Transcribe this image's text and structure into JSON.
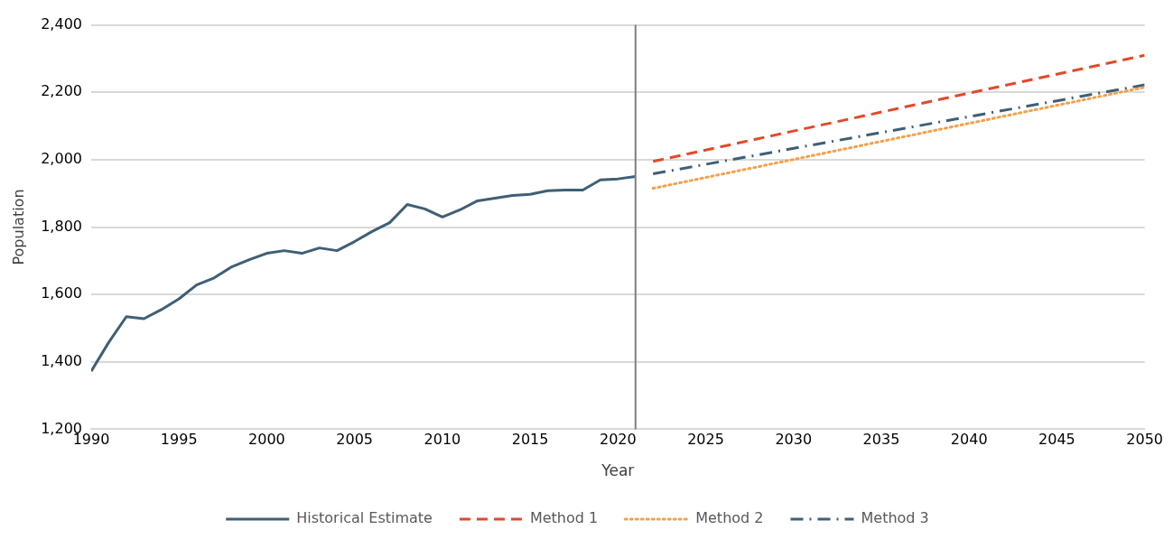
{
  "chart_data": {
    "type": "line",
    "xlabel": "Year",
    "ylabel": "Population",
    "xlim": [
      1990,
      2050
    ],
    "xticks": [
      1990,
      1995,
      2000,
      2005,
      2010,
      2015,
      2020,
      2025,
      2030,
      2035,
      2040,
      2045,
      2050
    ],
    "ylim": [
      1200,
      2400
    ],
    "yticks": [
      {
        "value": 1200,
        "label": "1,200"
      },
      {
        "value": 1400,
        "label": "1,400"
      },
      {
        "value": 1600,
        "label": "1,600"
      },
      {
        "value": 1800,
        "label": "1,800"
      },
      {
        "value": 2000,
        "label": "2,000"
      },
      {
        "value": 2200,
        "label": "2,200"
      },
      {
        "value": 2400,
        "label": "2,400"
      }
    ],
    "grid": "y",
    "legend": "bottom",
    "marker": "none",
    "series": [
      {
        "name": "Historical Estimate",
        "color": "#3f5f75",
        "line_style": "solid",
        "x": [
          1990,
          1991,
          1992,
          1993,
          1994,
          1995,
          1996,
          1997,
          1998,
          1999,
          2000,
          2001,
          2002,
          2003,
          2004,
          2005,
          2006,
          2007,
          2008,
          2009,
          2010,
          2011,
          2012,
          2013,
          2014,
          2015,
          2016,
          2017,
          2018,
          2019,
          2020,
          2021
        ],
        "values": [
          1372,
          1458,
          1534,
          1528,
          1555,
          1587,
          1628,
          1649,
          1682,
          1703,
          1722,
          1730,
          1722,
          1738,
          1730,
          1757,
          1787,
          1813,
          1867,
          1854,
          1830,
          1851,
          1878,
          1886,
          1894,
          1897,
          1908,
          1910,
          1910,
          1940,
          1943,
          1950
        ]
      },
      {
        "name": "Method 1",
        "color": "#e2492a",
        "line_style": "dashed",
        "x": [
          2022,
          2050
        ],
        "values": [
          1995,
          2310
        ]
      },
      {
        "name": "Method 2",
        "color": "#f5a04a",
        "line_style": "dotted",
        "x": [
          2022,
          2050
        ],
        "values": [
          1915,
          2215
        ]
      },
      {
        "name": "Method 3",
        "color": "#3f5f75",
        "line_style": "dashdot",
        "x": [
          2022,
          2050
        ],
        "values": [
          1958,
          2222
        ]
      }
    ],
    "ref_lines": [
      {
        "axis": "x",
        "value": 2021,
        "color": "#7f7f7f"
      }
    ]
  }
}
